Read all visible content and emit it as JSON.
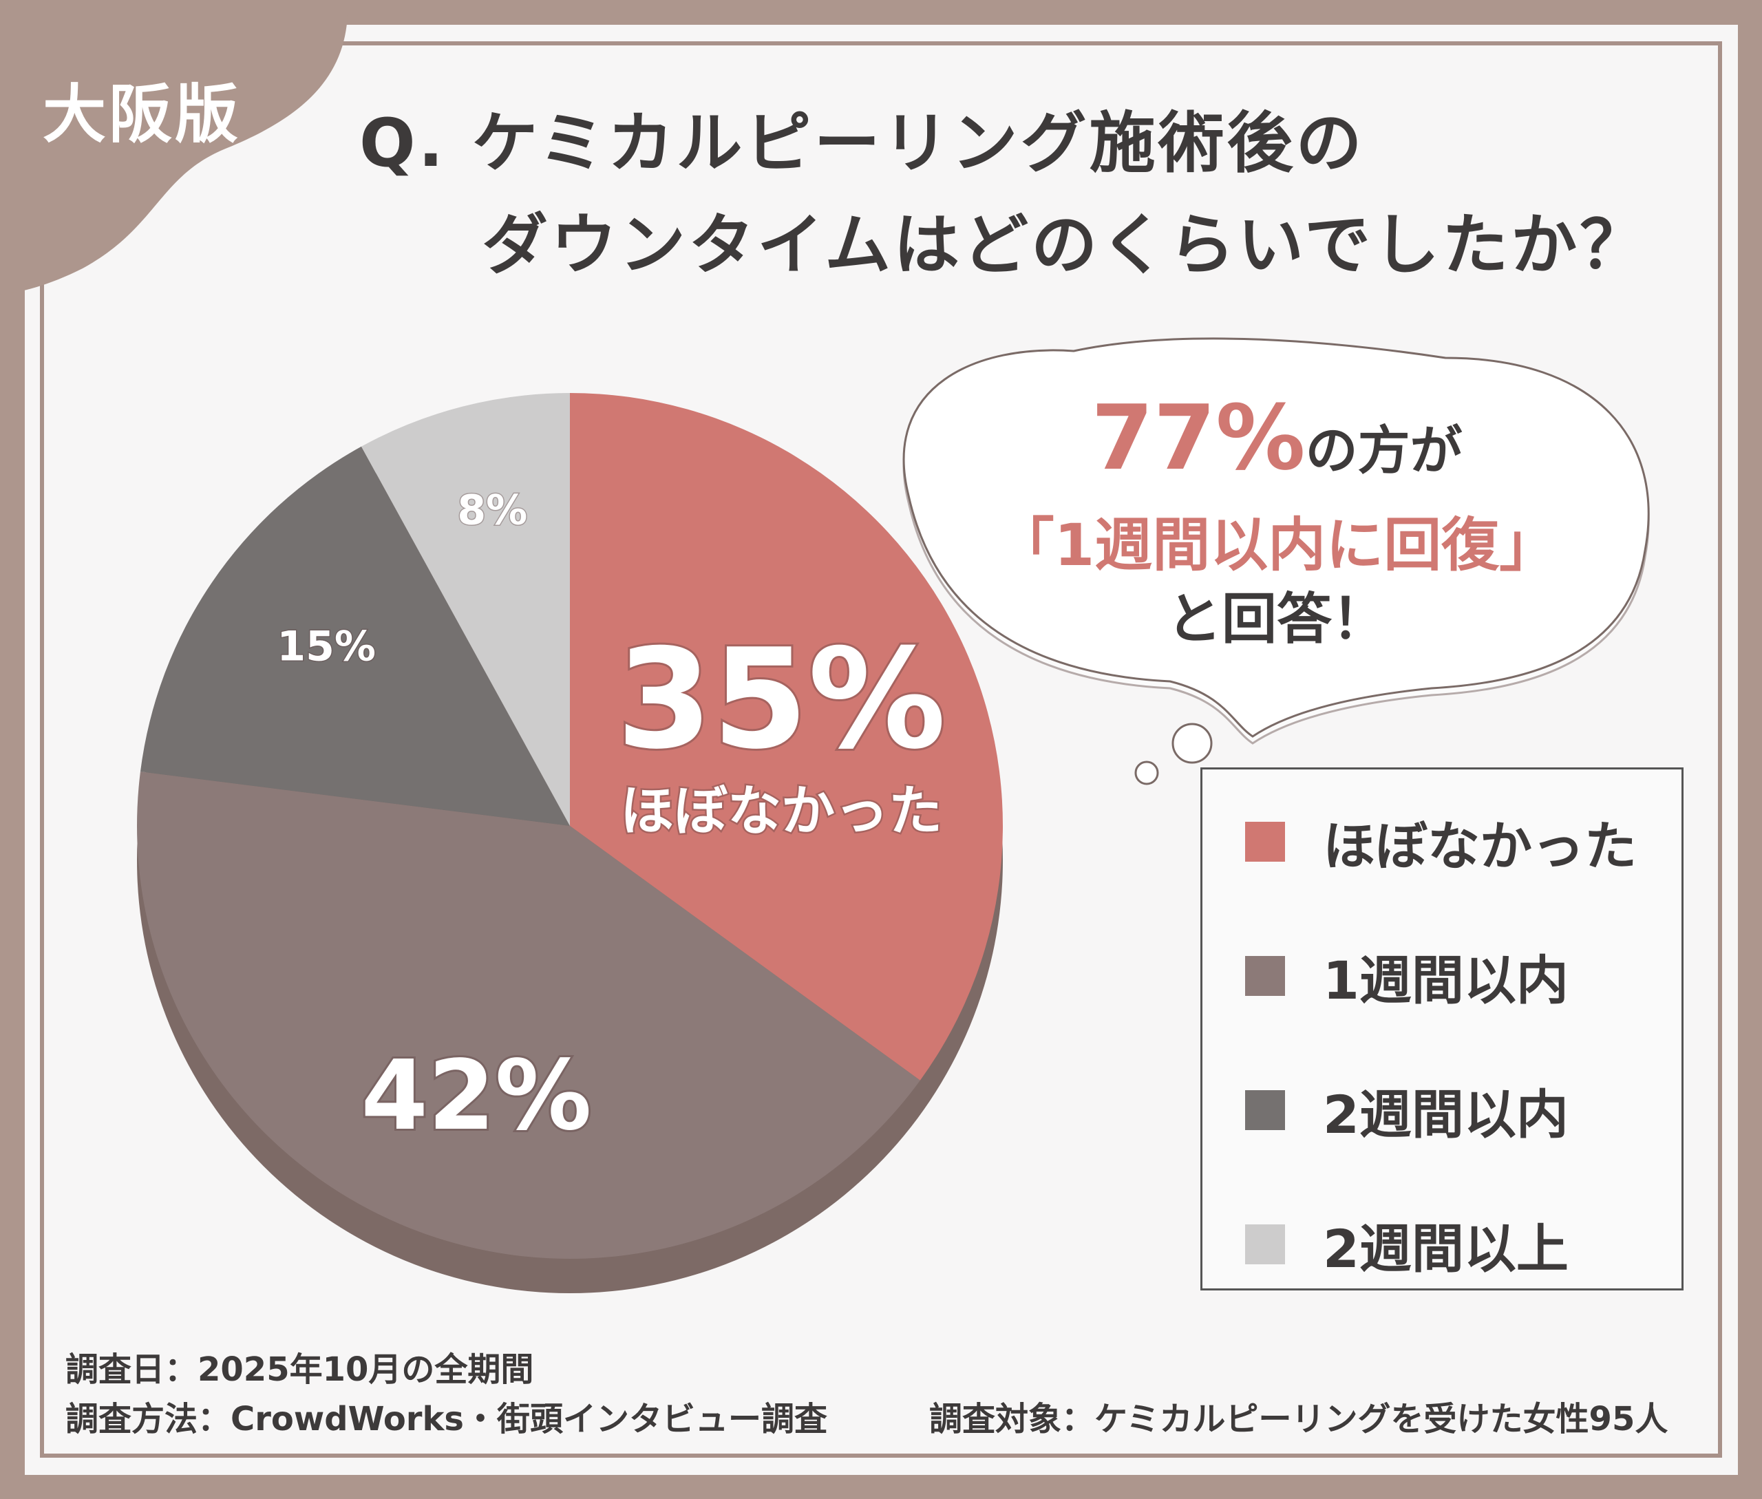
{
  "badge": "大阪版",
  "title": {
    "line1": "Q. ケミカルピーリング施術後の",
    "line2": "ダウンタイムはどのくらいでしたか？"
  },
  "callout": {
    "percent": "77%",
    "suffix": "の方が",
    "quote": "「1週間以内に回復」",
    "answer": "と回答！"
  },
  "chart_data": {
    "type": "pie",
    "categories": [
      "ほぼなかった",
      "1週間以内",
      "2週間以内",
      "2週間以上"
    ],
    "values": [
      35,
      42,
      15,
      8
    ],
    "colors": [
      "#d07872",
      "#8c7a78",
      "#757170",
      "#cdcccc"
    ],
    "labels": [
      "35%",
      "42%",
      "15%",
      "8%"
    ],
    "featured_label": "ほぼなかった",
    "legend": "right"
  },
  "footer": {
    "date": "調査日：2025年10月の全期間",
    "method": "調査方法：CrowdWorks・街頭インタビュー調査",
    "target": "調査対象：ケミカルピーリングを受けた女性95人"
  }
}
